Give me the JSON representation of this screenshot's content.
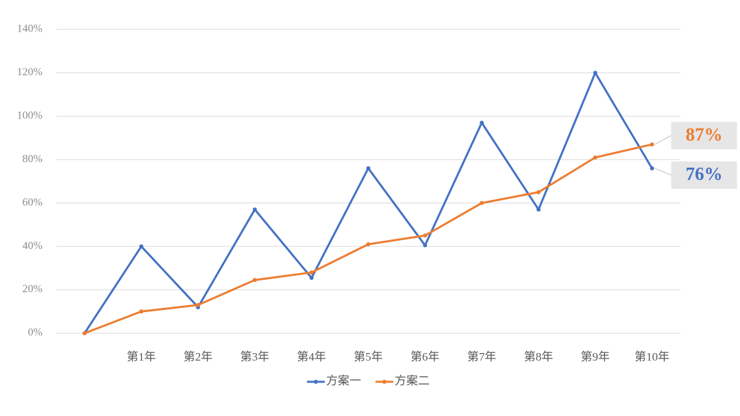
{
  "chart_data": {
    "type": "line",
    "categories": [
      null,
      "第1年",
      "第2年",
      "第3年",
      "第4年",
      "第5年",
      "第6年",
      "第7年",
      "第8年",
      "第9年",
      "第10年"
    ],
    "series": [
      {
        "name": "方案一",
        "color": "#4472c4",
        "values": [
          0,
          40,
          12,
          57,
          25.5,
          76,
          40.5,
          97,
          57,
          120,
          76
        ],
        "value_labels": [
          null,
          null,
          null,
          null,
          null,
          null,
          null,
          null,
          null,
          null,
          "76%"
        ]
      },
      {
        "name": "方案二",
        "color": "#ed7d31",
        "values": [
          0,
          10,
          13,
          24.5,
          28,
          41,
          45,
          60,
          65,
          81,
          87
        ],
        "value_labels": [
          null,
          null,
          null,
          null,
          null,
          null,
          null,
          null,
          null,
          null,
          "87%"
        ]
      }
    ],
    "ylim": [
      0,
      140
    ],
    "yticks": [
      {
        "value": 0,
        "label": "0%"
      },
      {
        "value": 20,
        "label": "20%"
      },
      {
        "value": 40,
        "label": "40%"
      },
      {
        "value": 60,
        "label": "60%"
      },
      {
        "value": 80,
        "label": "80%"
      },
      {
        "value": 100,
        "label": "100%"
      },
      {
        "value": 120,
        "label": "120%"
      },
      {
        "value": 140,
        "label": "140%"
      }
    ],
    "grid": true,
    "legend": "bottom"
  }
}
